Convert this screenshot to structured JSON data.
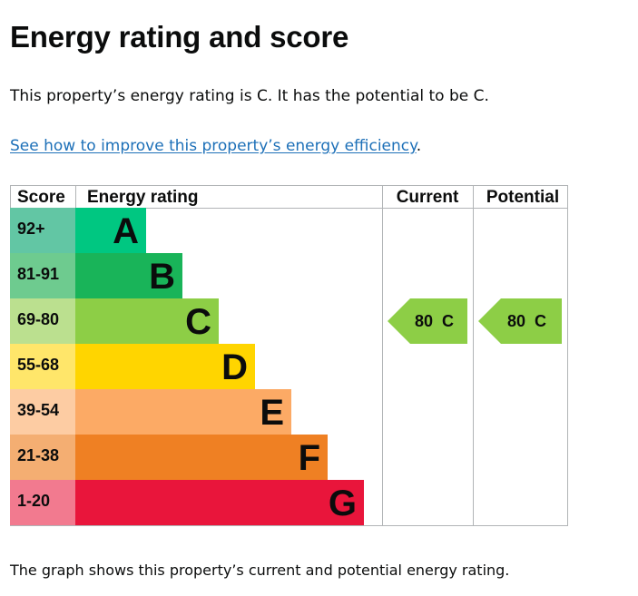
{
  "title": "Energy rating and score",
  "intro": "This property’s energy rating is C. It has the potential to be C.",
  "link": {
    "text": "See how to improve this property’s energy efficiency",
    "after": "."
  },
  "footer": "The graph shows this property’s current and potential energy rating.",
  "chart_data": {
    "type": "table",
    "headers": {
      "score": "Score",
      "rating": "Energy rating",
      "current": "Current",
      "potential": "Potential"
    },
    "bands": [
      {
        "score": "92+",
        "letter": "A",
        "color": "#00c781",
        "score_color": "#62c6a4"
      },
      {
        "score": "81-91",
        "letter": "B",
        "color": "#19b459",
        "score_color": "#6ecb8f"
      },
      {
        "score": "69-80",
        "letter": "C",
        "color": "#8dce46",
        "score_color": "#bbe08f"
      },
      {
        "score": "55-68",
        "letter": "D",
        "color": "#ffd500",
        "score_color": "#ffe66a"
      },
      {
        "score": "39-54",
        "letter": "E",
        "color": "#fcaa65",
        "score_color": "#fdcca3"
      },
      {
        "score": "21-38",
        "letter": "F",
        "color": "#ef8023",
        "score_color": "#f4ae72"
      },
      {
        "score": "1-20",
        "letter": "G",
        "color": "#e9153b",
        "score_color": "#f27a8f"
      }
    ],
    "current": {
      "value": 80,
      "band": "C",
      "label": "80  C"
    },
    "potential": {
      "value": 80,
      "band": "C",
      "label": "80  C"
    }
  }
}
